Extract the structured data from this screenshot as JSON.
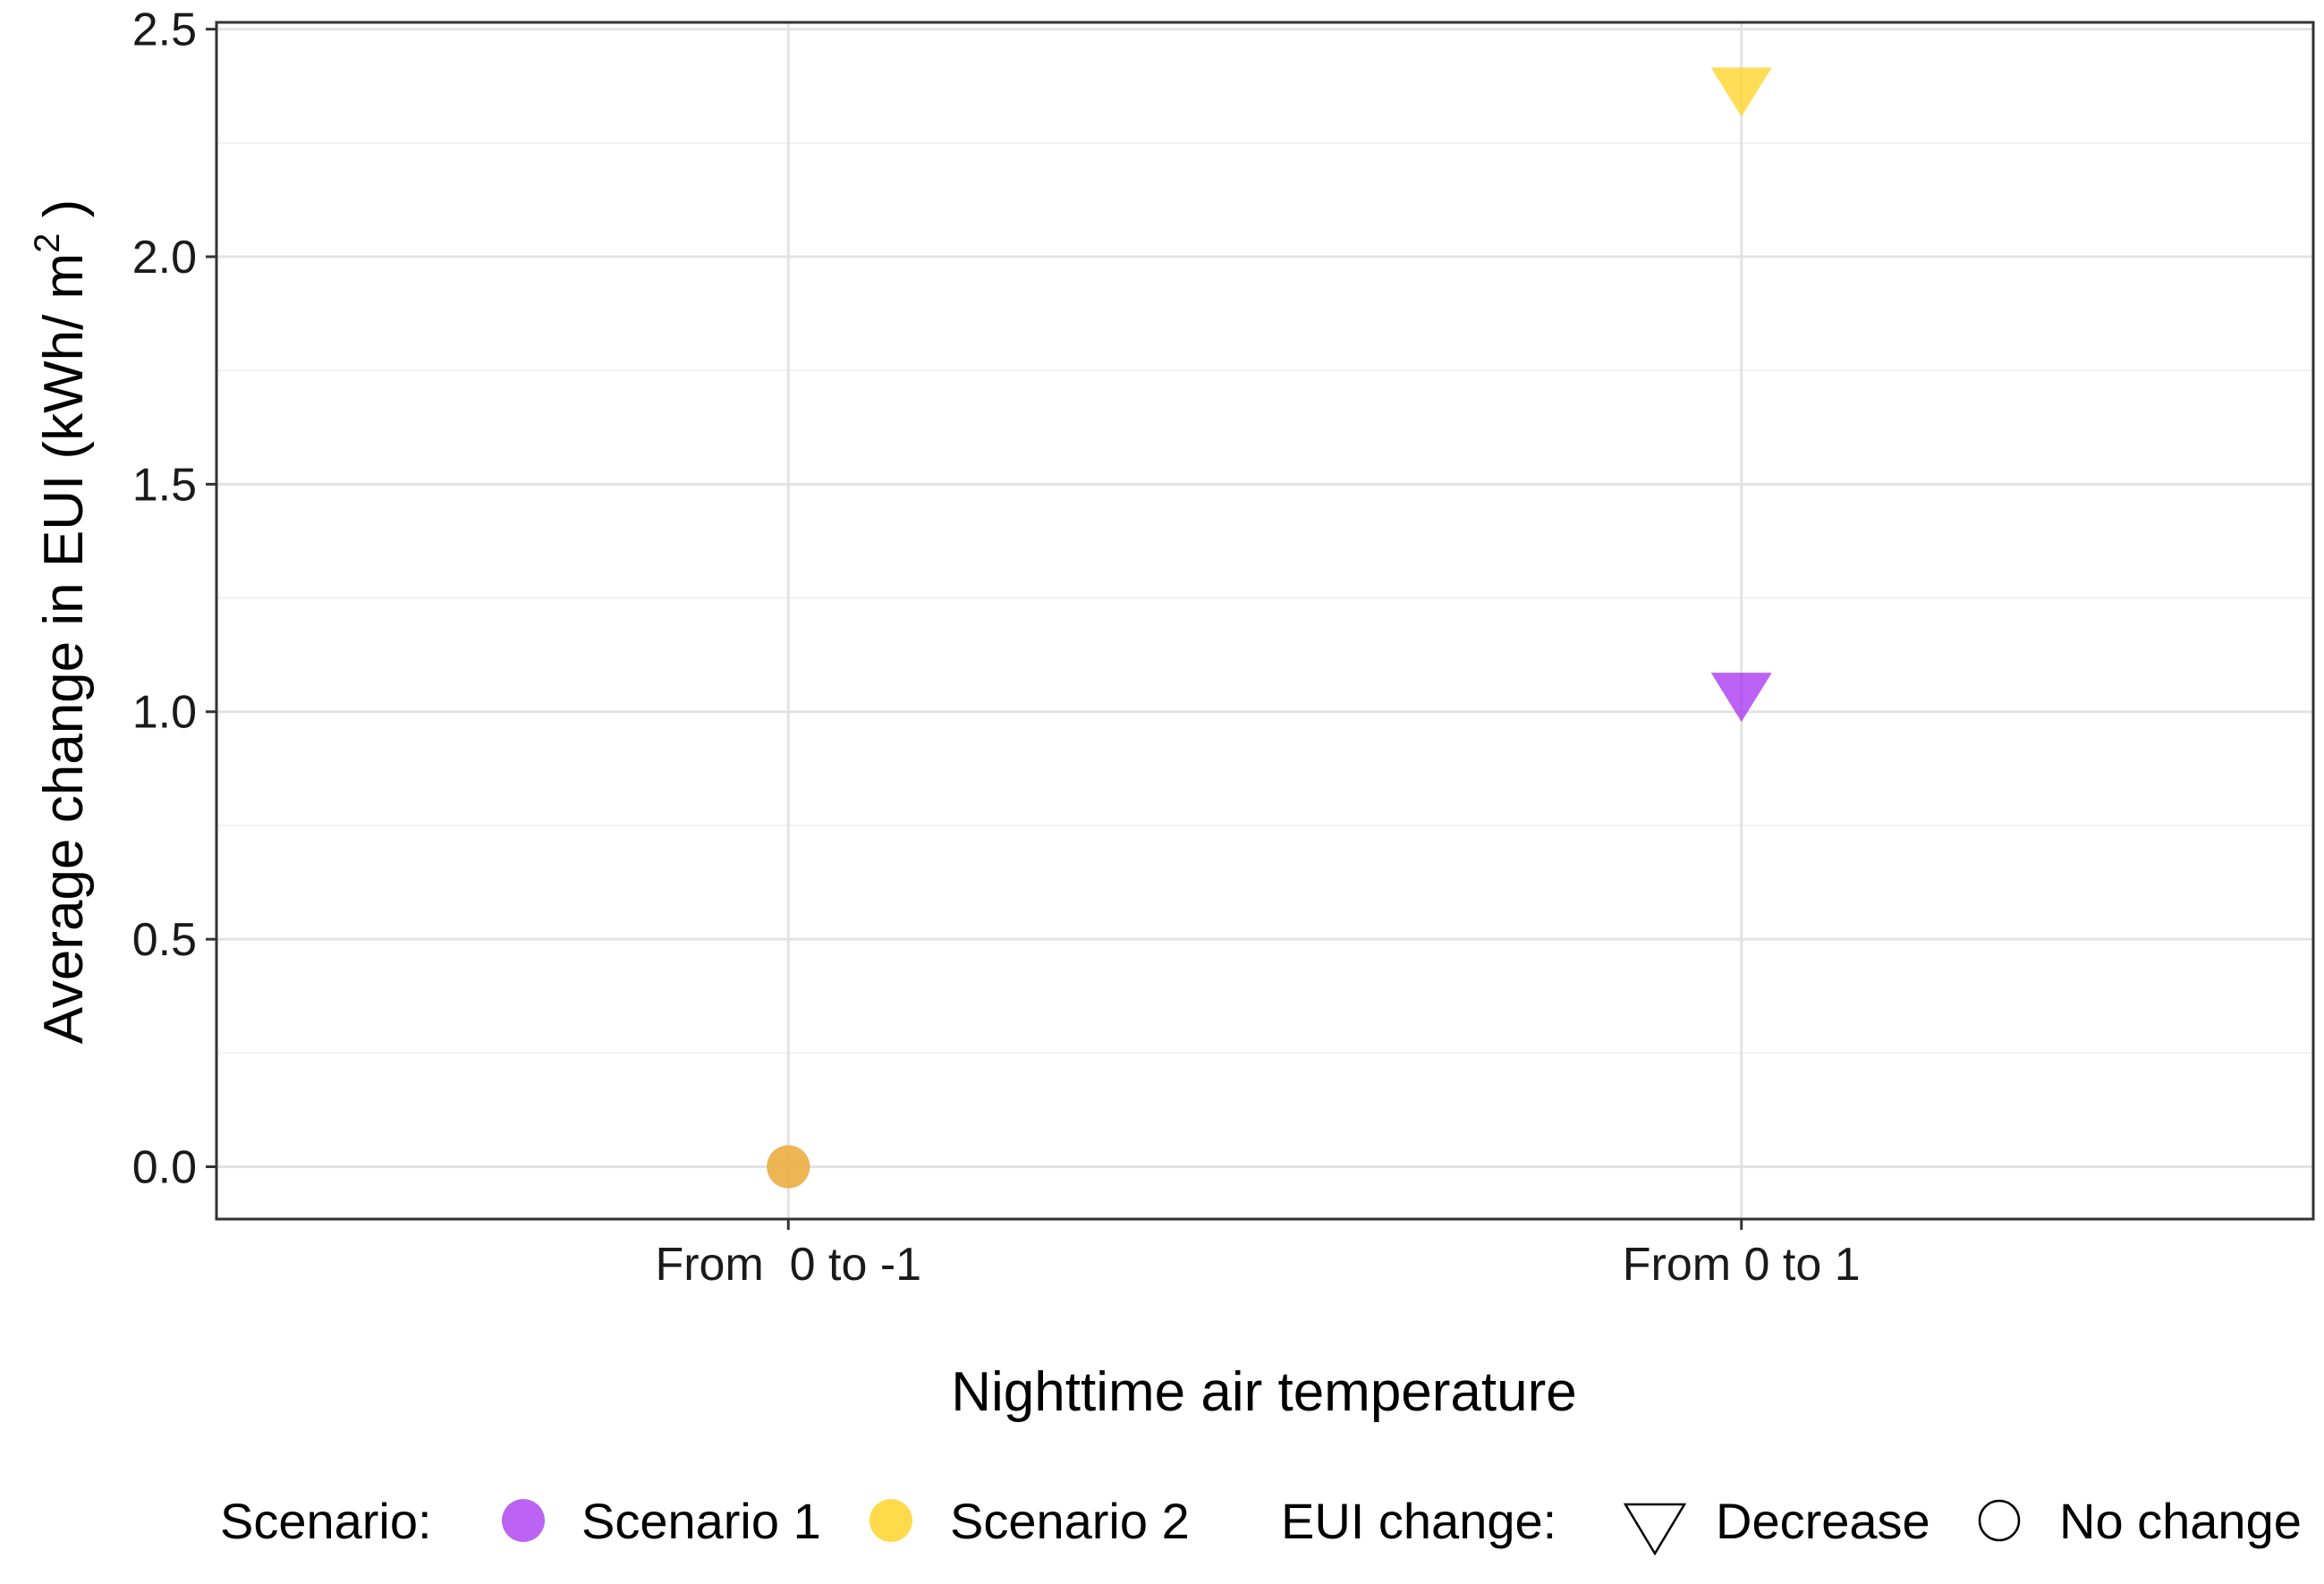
{
  "chart_data": {
    "type": "scatter",
    "title": "",
    "xlabel": "Nighttime air temperature",
    "ylabel": "Average change in EUI (kWh/ m",
    "ylabel_superscript": "2",
    "ylabel_close": " )",
    "categories": [
      "From  0 to -1",
      "From 0 to 1"
    ],
    "ylim": [
      -0.115,
      2.515
    ],
    "yticks": [
      "0.0",
      "0.5",
      "1.0",
      "1.5",
      "2.0",
      "2.5"
    ],
    "ytick_values": [
      0,
      0.5,
      1.0,
      1.5,
      2.0,
      2.5
    ],
    "grid": true,
    "legend_position": "bottom",
    "series": [
      {
        "name": "Scenario 1",
        "color": "#a020f0",
        "points": [
          {
            "category": "From  0 to -1",
            "value": 0.0,
            "shape": "circle"
          },
          {
            "category": "From 0 to 1",
            "value": 1.05,
            "shape": "triangle-down"
          }
        ]
      },
      {
        "name": "Scenario 2",
        "color": "#ffd21f",
        "points": [
          {
            "category": "From  0 to -1",
            "value": 0.0,
            "shape": "circle"
          },
          {
            "category": "From 0 to 1",
            "value": 2.38,
            "shape": "triangle-down"
          }
        ]
      }
    ]
  },
  "legend": {
    "scenario_title": "Scenario:",
    "scenario_items": [
      {
        "label": "Scenario 1",
        "color": "#a020f0"
      },
      {
        "label": "Scenario 2",
        "color": "#ffd21f"
      }
    ],
    "shape_title": "EUI change:",
    "shape_items": [
      {
        "label": "Decrease",
        "shape": "triangle-down"
      },
      {
        "label": "No change",
        "shape": "circle"
      }
    ]
  }
}
